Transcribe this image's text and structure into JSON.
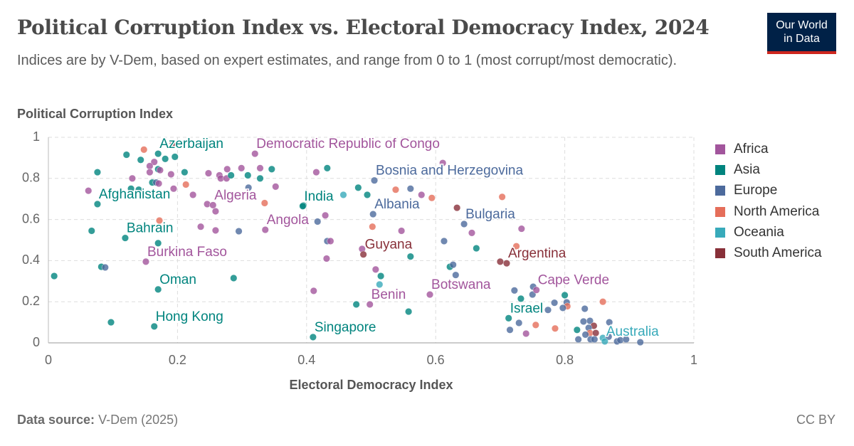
{
  "header": {
    "title": "Political Corruption Index vs. Electoral Democracy Index, 2024",
    "subtitle": "Indices are by V-Dem, based on expert estimates, and range from 0 to 1 (most corrupt/most democratic).",
    "logo_line1": "Our World",
    "logo_line2": "in Data"
  },
  "footer": {
    "source_label": "Data source:",
    "source_value": "V-Dem (2025)",
    "license": "CC BY"
  },
  "chart_data": {
    "type": "scatter",
    "title": "Political Corruption Index vs. Electoral Democracy Index, 2024",
    "xlabel": "Electoral Democracy Index",
    "ylabel": "Political Corruption Index",
    "xlim": [
      0,
      1
    ],
    "ylim": [
      0,
      1
    ],
    "xticks": [
      "0",
      "0.2",
      "0.4",
      "0.6",
      "0.8",
      "1"
    ],
    "yticks": [
      "0",
      "0.2",
      "0.4",
      "0.6",
      "0.8",
      "1"
    ],
    "xtick_values": [
      0,
      0.2,
      0.4,
      0.6,
      0.8,
      1
    ],
    "ytick_values": [
      0,
      0.2,
      0.4,
      0.6,
      0.8,
      1
    ],
    "grid": true,
    "legend_placement": "right",
    "regions": [
      {
        "name": "Africa",
        "color": "#a2559c",
        "label_color": "#a2559c"
      },
      {
        "name": "Asia",
        "color": "#00847e",
        "label_color": "#00847e"
      },
      {
        "name": "Europe",
        "color": "#4c6a9c",
        "label_color": "#4c6a9c"
      },
      {
        "name": "North America",
        "color": "#e56e5a",
        "label_color": "#e56e5a"
      },
      {
        "name": "Oceania",
        "color": "#38aaba",
        "label_color": "#38aaba"
      },
      {
        "name": "South America",
        "color": "#883039",
        "label_color": "#883039"
      }
    ],
    "labeled_points": [
      {
        "name": "Azerbaijan",
        "x": 0.17,
        "y": 0.92,
        "region": "Asia"
      },
      {
        "name": "Democratic Republic of Congo",
        "x": 0.32,
        "y": 0.92,
        "region": "Africa"
      },
      {
        "name": "Bosnia and Herzegovina",
        "x": 0.505,
        "y": 0.79,
        "region": "Europe"
      },
      {
        "name": "Afghanistan",
        "x": 0.076,
        "y": 0.675,
        "region": "Asia"
      },
      {
        "name": "Algeria",
        "x": 0.255,
        "y": 0.67,
        "region": "Africa"
      },
      {
        "name": "India",
        "x": 0.394,
        "y": 0.665,
        "region": "Asia"
      },
      {
        "name": "Albania",
        "x": 0.503,
        "y": 0.626,
        "region": "Europe"
      },
      {
        "name": "Angola",
        "x": 0.336,
        "y": 0.55,
        "region": "Africa"
      },
      {
        "name": "Bulgaria",
        "x": 0.644,
        "y": 0.578,
        "region": "Europe"
      },
      {
        "name": "Bahrain",
        "x": 0.119,
        "y": 0.51,
        "region": "Asia"
      },
      {
        "name": "Guyana",
        "x": 0.488,
        "y": 0.43,
        "region": "South America"
      },
      {
        "name": "Argentina",
        "x": 0.71,
        "y": 0.387,
        "region": "South America"
      },
      {
        "name": "Burkina Faso",
        "x": 0.151,
        "y": 0.395,
        "region": "Africa"
      },
      {
        "name": "Oman",
        "x": 0.17,
        "y": 0.26,
        "region": "Asia"
      },
      {
        "name": "Botswana",
        "x": 0.591,
        "y": 0.235,
        "region": "Africa"
      },
      {
        "name": "Cape Verde",
        "x": 0.756,
        "y": 0.257,
        "region": "Africa"
      },
      {
        "name": "Benin",
        "x": 0.498,
        "y": 0.187,
        "region": "Africa"
      },
      {
        "name": "Israel",
        "x": 0.713,
        "y": 0.12,
        "region": "Asia"
      },
      {
        "name": "Hong Kong",
        "x": 0.164,
        "y": 0.08,
        "region": "Asia"
      },
      {
        "name": "Singapore",
        "x": 0.41,
        "y": 0.028,
        "region": "Asia"
      },
      {
        "name": "Australia",
        "x": 0.862,
        "y": 0.007,
        "region": "Oceania"
      }
    ],
    "points": [
      [
        0.009,
        0.325,
        "Asia"
      ],
      [
        0.076,
        0.83,
        "Asia"
      ],
      [
        0.121,
        0.915,
        "Asia"
      ],
      [
        0.148,
        0.94,
        "North America"
      ],
      [
        0.143,
        0.89,
        "Asia"
      ],
      [
        0.164,
        0.88,
        "Africa"
      ],
      [
        0.181,
        0.895,
        "Asia"
      ],
      [
        0.196,
        0.905,
        "Asia"
      ],
      [
        0.193,
        0.97,
        "South America"
      ],
      [
        0.157,
        0.86,
        "Africa"
      ],
      [
        0.157,
        0.83,
        "Africa"
      ],
      [
        0.17,
        0.845,
        "Asia"
      ],
      [
        0.173,
        0.84,
        "Africa"
      ],
      [
        0.19,
        0.82,
        "Africa"
      ],
      [
        0.211,
        0.83,
        "Asia"
      ],
      [
        0.13,
        0.8,
        "Africa"
      ],
      [
        0.062,
        0.74,
        "Africa"
      ],
      [
        0.128,
        0.75,
        "Asia"
      ],
      [
        0.14,
        0.745,
        "Asia"
      ],
      [
        0.161,
        0.78,
        "Asia"
      ],
      [
        0.167,
        0.78,
        "Europe"
      ],
      [
        0.171,
        0.775,
        "Africa"
      ],
      [
        0.194,
        0.75,
        "Africa"
      ],
      [
        0.213,
        0.77,
        "North America"
      ],
      [
        0.224,
        0.72,
        "Africa"
      ],
      [
        0.248,
        0.825,
        "Africa"
      ],
      [
        0.265,
        0.815,
        "Africa"
      ],
      [
        0.267,
        0.8,
        "Africa"
      ],
      [
        0.276,
        0.8,
        "Africa"
      ],
      [
        0.277,
        0.845,
        "Africa"
      ],
      [
        0.283,
        0.815,
        "Asia"
      ],
      [
        0.299,
        0.85,
        "Africa"
      ],
      [
        0.309,
        0.815,
        "Asia"
      ],
      [
        0.328,
        0.85,
        "Africa"
      ],
      [
        0.328,
        0.8,
        "Asia"
      ],
      [
        0.346,
        0.845,
        "Asia"
      ],
      [
        0.31,
        0.755,
        "Europe"
      ],
      [
        0.352,
        0.76,
        "Africa"
      ],
      [
        0.335,
        0.68,
        "North America"
      ],
      [
        0.246,
        0.675,
        "Africa"
      ],
      [
        0.259,
        0.64,
        "Africa"
      ],
      [
        0.172,
        0.595,
        "North America"
      ],
      [
        0.067,
        0.545,
        "Asia"
      ],
      [
        0.17,
        0.485,
        "Asia"
      ],
      [
        0.236,
        0.565,
        "Africa"
      ],
      [
        0.259,
        0.547,
        "Africa"
      ],
      [
        0.295,
        0.543,
        "Europe"
      ],
      [
        0.395,
        0.668,
        "Asia"
      ],
      [
        0.417,
        0.59,
        "Europe"
      ],
      [
        0.429,
        0.62,
        "Africa"
      ],
      [
        0.415,
        0.83,
        "Africa"
      ],
      [
        0.432,
        0.85,
        "Asia"
      ],
      [
        0.457,
        0.72,
        "Oceania"
      ],
      [
        0.48,
        0.755,
        "Asia"
      ],
      [
        0.432,
        0.495,
        "Europe"
      ],
      [
        0.437,
        0.495,
        "Africa"
      ],
      [
        0.431,
        0.41,
        "Africa"
      ],
      [
        0.082,
        0.37,
        "Asia"
      ],
      [
        0.088,
        0.367,
        "Europe"
      ],
      [
        0.287,
        0.315,
        "Asia"
      ],
      [
        0.411,
        0.253,
        "Africa"
      ],
      [
        0.477,
        0.187,
        "Asia"
      ],
      [
        0.097,
        0.1,
        "Asia"
      ],
      [
        0.611,
        0.875,
        "Africa"
      ],
      [
        0.494,
        0.72,
        "Asia"
      ],
      [
        0.538,
        0.745,
        "North America"
      ],
      [
        0.561,
        0.75,
        "Europe"
      ],
      [
        0.578,
        0.72,
        "Africa"
      ],
      [
        0.594,
        0.705,
        "North America"
      ],
      [
        0.703,
        0.71,
        "North America"
      ],
      [
        0.633,
        0.657,
        "South America"
      ],
      [
        0.502,
        0.565,
        "North America"
      ],
      [
        0.547,
        0.545,
        "Africa"
      ],
      [
        0.656,
        0.535,
        "Africa"
      ],
      [
        0.733,
        0.555,
        "Africa"
      ],
      [
        0.613,
        0.495,
        "Europe"
      ],
      [
        0.663,
        0.46,
        "Asia"
      ],
      [
        0.725,
        0.47,
        "North America"
      ],
      [
        0.486,
        0.457,
        "Africa"
      ],
      [
        0.561,
        0.42,
        "Asia"
      ],
      [
        0.7,
        0.395,
        "South America"
      ],
      [
        0.622,
        0.37,
        "Asia"
      ],
      [
        0.627,
        0.38,
        "Europe"
      ],
      [
        0.507,
        0.357,
        "Africa"
      ],
      [
        0.515,
        0.325,
        "Asia"
      ],
      [
        0.631,
        0.33,
        "Europe"
      ],
      [
        0.513,
        0.284,
        "Oceania"
      ],
      [
        0.558,
        0.152,
        "Asia"
      ],
      [
        0.722,
        0.255,
        "Europe"
      ],
      [
        0.751,
        0.273,
        "Europe"
      ],
      [
        0.75,
        0.235,
        "Europe"
      ],
      [
        0.732,
        0.215,
        "Asia"
      ],
      [
        0.8,
        0.232,
        "Asia"
      ],
      [
        0.784,
        0.195,
        "Europe"
      ],
      [
        0.803,
        0.197,
        "Europe"
      ],
      [
        0.804,
        0.178,
        "North America"
      ],
      [
        0.797,
        0.17,
        "Europe"
      ],
      [
        0.859,
        0.2,
        "North America"
      ],
      [
        0.831,
        0.166,
        "Europe"
      ],
      [
        0.774,
        0.16,
        "Europe"
      ],
      [
        0.729,
        0.097,
        "Europe"
      ],
      [
        0.715,
        0.063,
        "Europe"
      ],
      [
        0.74,
        0.045,
        "Africa"
      ],
      [
        0.755,
        0.087,
        "North America"
      ],
      [
        0.785,
        0.07,
        "North America"
      ],
      [
        0.819,
        0.063,
        "Asia"
      ],
      [
        0.821,
        0.017,
        "Europe"
      ],
      [
        0.829,
        0.104,
        "Europe"
      ],
      [
        0.839,
        0.107,
        "Europe"
      ],
      [
        0.845,
        0.083,
        "South America"
      ],
      [
        0.837,
        0.073,
        "Europe"
      ],
      [
        0.839,
        0.048,
        "North America"
      ],
      [
        0.848,
        0.048,
        "South America"
      ],
      [
        0.832,
        0.04,
        "Europe"
      ],
      [
        0.84,
        0.017,
        "Europe"
      ],
      [
        0.846,
        0.017,
        "Europe"
      ],
      [
        0.859,
        0.024,
        "Oceania"
      ],
      [
        0.869,
        0.1,
        "Europe"
      ],
      [
        0.868,
        0.03,
        "Europe"
      ],
      [
        0.881,
        0.007,
        "Europe"
      ],
      [
        0.886,
        0.013,
        "Europe"
      ],
      [
        0.895,
        0.017,
        "Europe"
      ],
      [
        0.917,
        0.003,
        "Europe"
      ]
    ]
  }
}
